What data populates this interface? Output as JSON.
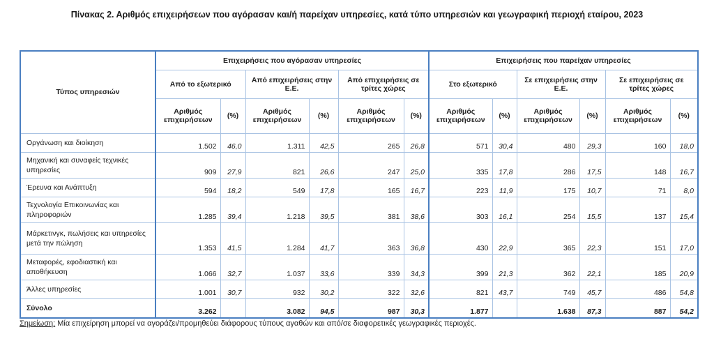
{
  "title": "Πίνακας 2. Αριθμός επιχειρήσεων που αγόρασαν και/ή παρείχαν υπηρεσίες, κατά τύπο υπηρεσιών και γεωγραφική περιοχή εταίρου, 2023",
  "header": {
    "row_label": "Τύπος υπηρεσιών",
    "groups": [
      "Επιχειρήσεις που αγόρασαν υπηρεσίες",
      "Επιχειρήσεις που παρείχαν υπηρεσίες"
    ],
    "subgroups": [
      "Από το εξωτερικό",
      "Από επιχειρήσεις στην Ε.Ε.",
      "Από επιχειρήσεις σε τρίτες χώρες",
      "Στο εξωτερικό",
      "Σε επιχειρήσεις στην Ε.Ε.",
      "Σε επιχειρήσεις σε τρίτες χώρες"
    ],
    "num_label": "Αριθμός επιχειρήσεων",
    "pct_label": "(%)"
  },
  "rows": [
    {
      "label": "Οργάνωση και διοίκηση",
      "values": [
        "1.502",
        "46,0",
        "1.311",
        "42,5",
        "265",
        "26,8",
        "571",
        "30,4",
        "480",
        "29,3",
        "160",
        "18,0"
      ]
    },
    {
      "label": "Μηχανική και συναφείς τεχνικές υπηρεσίες",
      "values": [
        "909",
        "27,9",
        "821",
        "26,6",
        "247",
        "25,0",
        "335",
        "17,8",
        "286",
        "17,5",
        "148",
        "16,7"
      ]
    },
    {
      "label": "Έρευνα και Ανάπτυξη",
      "values": [
        "594",
        "18,2",
        "549",
        "17,8",
        "165",
        "16,7",
        "223",
        "11,9",
        "175",
        "10,7",
        "71",
        "8,0"
      ]
    },
    {
      "label": "Τεχνολογία Επικοινωνίας και πληροφοριών",
      "values": [
        "1.285",
        "39,4",
        "1.218",
        "39,5",
        "381",
        "38,6",
        "303",
        "16,1",
        "254",
        "15,5",
        "137",
        "15,4"
      ]
    },
    {
      "label": "Μάρκετινγκ, πωλήσεις και υπηρεσίες μετά την πώληση",
      "values": [
        "1.353",
        "41,5",
        "1.284",
        "41,7",
        "363",
        "36,8",
        "430",
        "22,9",
        "365",
        "22,3",
        "151",
        "17,0"
      ]
    },
    {
      "label": "Μεταφορές, εφοδιαστική και αποθήκευση",
      "values": [
        "1.066",
        "32,7",
        "1.037",
        "33,6",
        "339",
        "34,3",
        "399",
        "21,3",
        "362",
        "22,1",
        "185",
        "20,9"
      ]
    },
    {
      "label": "Άλλες υπηρεσίες",
      "values": [
        "1.001",
        "30,7",
        "932",
        "30,2",
        "322",
        "32,6",
        "821",
        "43,7",
        "749",
        "45,7",
        "486",
        "54,8"
      ]
    },
    {
      "label": "Σύνολο",
      "values": [
        "3.262",
        "",
        "3.082",
        "94,5",
        "987",
        "30,3",
        "1.877",
        "",
        "1.638",
        "87,3",
        "887",
        "54,2"
      ]
    }
  ],
  "note": {
    "label": "Σημείωση:",
    "text": " Μία επιχείρηση μπορεί να αγοράζει/προμηθεύει διάφορους τύπους αγαθών και από/σε διαφορετικές γεωγραφικές περιοχές."
  },
  "colors": {
    "border": "#4a7fc1",
    "grid": "#a9c3e3"
  }
}
